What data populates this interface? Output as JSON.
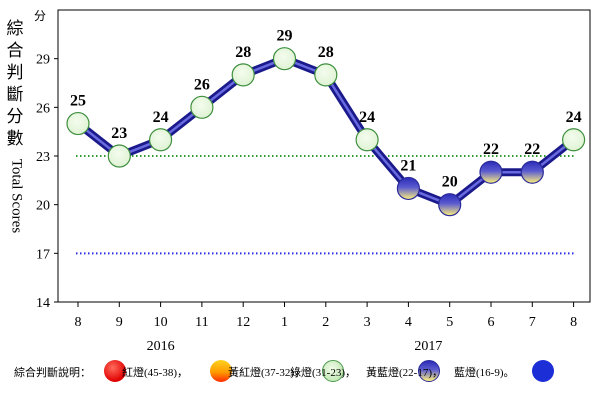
{
  "chart_data": {
    "type": "line",
    "ylabel_cjk": "綜合判斷分數",
    "ylabel_en": "Total Scores",
    "yunit": "分",
    "ylim": [
      14,
      32
    ],
    "yticks": [
      "14",
      "17",
      "20",
      "23",
      "26",
      "29"
    ],
    "categories": [
      "8",
      "9",
      "10",
      "11",
      "12",
      "1",
      "2",
      "3",
      "4",
      "5",
      "6",
      "7",
      "8"
    ],
    "values": [
      25,
      23,
      24,
      26,
      28,
      29,
      28,
      24,
      21,
      20,
      22,
      22,
      24
    ],
    "point_signals": [
      "green",
      "green",
      "green",
      "green",
      "green",
      "green",
      "green",
      "green",
      "yellow-blue",
      "yellow-blue",
      "yellow-blue",
      "yellow-blue",
      "green"
    ],
    "reference_lines": [
      {
        "value": 23,
        "color": "#2e9b2e",
        "style": "dotted"
      },
      {
        "value": 17,
        "color": "#2a2ae0",
        "style": "dotted"
      }
    ],
    "year_labels": [
      "2016",
      "2017"
    ],
    "grid": false,
    "legend": {
      "title": "綜合判斷說明：",
      "items": [
        {
          "text": "紅燈(45-38)，",
          "signal": "red"
        },
        {
          "text": "黃紅燈(37-32)，",
          "signal": "yellow-red"
        },
        {
          "text": "綠燈(31-23)，",
          "signal": "green"
        },
        {
          "text": "黃藍燈(22-17)，",
          "signal": "yellow-blue"
        },
        {
          "text": "藍燈(16-9)。",
          "signal": "blue"
        }
      ]
    }
  },
  "colors": {
    "line": "#1a1a8c",
    "line_inner": "#6a6ae0",
    "green_marker_fill": "#dff3d4",
    "green_marker_stroke": "#3e8f3e",
    "yb_marker_top": "#2b2bb8",
    "yb_marker_bottom": "#fff27a"
  }
}
